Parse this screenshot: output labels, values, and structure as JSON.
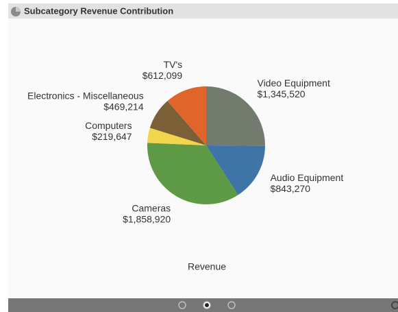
{
  "chart_data": {
    "type": "pie",
    "title": "Subcategory Revenue Contribution",
    "x_label": "Revenue",
    "categories": [
      "Video Equipment",
      "Audio Equipment",
      "Cameras",
      "Computers",
      "Electronics - Miscellaneous",
      "TV's"
    ],
    "values": [
      1345520,
      843270,
      1858920,
      219647,
      469214,
      612099
    ],
    "value_labels": [
      "$1,345,520",
      "$843,270",
      "$1,858,920",
      "$219,647",
      "$469,214",
      "$612,099"
    ],
    "colors": [
      "#737a6e",
      "#3f74a7",
      "#5e9a45",
      "#f3d54b",
      "#7b5f37",
      "#e0652b"
    ]
  }
}
